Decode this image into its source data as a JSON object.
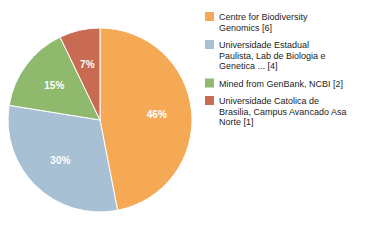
{
  "chart_data": {
    "type": "pie",
    "categories": [
      "Centre for Biodiversity\nGenomics [6]",
      "Universidade Estadual\nPaulista, Lab de Biologia e\nGenetica ... [4]",
      "Mined from GenBank, NCBI [2]",
      "Universidade Catolica de\nBrasilia, Campus Avancado Asa\nNorte [1]"
    ],
    "values": [
      46,
      30,
      15,
      7
    ],
    "value_labels": [
      "46%",
      "30%",
      "15%",
      "7%"
    ],
    "colors": [
      "#F5A954",
      "#A8C0D4",
      "#8FBA6E",
      "#C96B52"
    ],
    "data_labels": true,
    "legend": "right"
  }
}
